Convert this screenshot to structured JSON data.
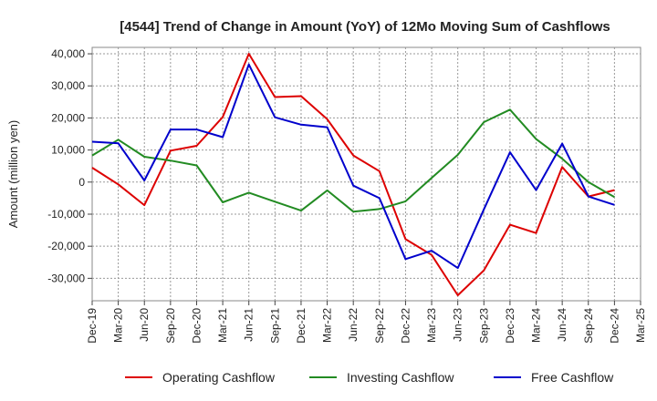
{
  "chart_data": {
    "type": "line",
    "title": "[4544]  Trend of Change in Amount (YoY) of 12Mo Moving Sum of Cashflows",
    "xlabel": "",
    "ylabel": "Amount (million yen)",
    "ylim": [
      -37000,
      42000
    ],
    "yticks": [
      40000,
      30000,
      20000,
      10000,
      0,
      -10000,
      -20000,
      -30000
    ],
    "ytick_labels": [
      "40,000",
      "30,000",
      "20,000",
      "10,000",
      "0",
      "-10,000",
      "-20,000",
      "-30,000"
    ],
    "categories": [
      "Dec-19",
      "Mar-20",
      "Jun-20",
      "Sep-20",
      "Dec-20",
      "Mar-21",
      "Jun-21",
      "Sep-21",
      "Dec-21",
      "Mar-22",
      "Jun-22",
      "Sep-22",
      "Dec-22",
      "Mar-23",
      "Jun-23",
      "Sep-23",
      "Dec-23",
      "Mar-24",
      "Jun-24",
      "Sep-24",
      "Dec-24",
      "Mar-25"
    ],
    "grid": true,
    "legend_position": "bottom",
    "series": [
      {
        "name": "Operating Cashflow",
        "color": "#dd0000",
        "values": [
          4500,
          -700,
          -7200,
          9800,
          11300,
          20300,
          40000,
          26500,
          26800,
          19600,
          8300,
          3400,
          -17800,
          -22700,
          -35300,
          -27500,
          -13300,
          -15900,
          4700,
          -4500,
          -2500,
          null
        ]
      },
      {
        "name": "Investing Cashflow",
        "color": "#228b22",
        "values": [
          8300,
          13200,
          7900,
          6700,
          5200,
          -6300,
          -3300,
          -6100,
          -8900,
          -2600,
          -9200,
          -8400,
          -6000,
          1300,
          8500,
          18700,
          22600,
          13400,
          7300,
          0,
          -4700,
          null
        ]
      },
      {
        "name": "Free Cashflow",
        "color": "#0000cc",
        "values": [
          12600,
          12100,
          500,
          16400,
          16400,
          14000,
          36700,
          20200,
          17900,
          17100,
          -1100,
          -5000,
          -24000,
          -21400,
          -26800,
          -8500,
          9300,
          -2500,
          12000,
          -4500,
          -7100,
          null
        ]
      }
    ]
  }
}
